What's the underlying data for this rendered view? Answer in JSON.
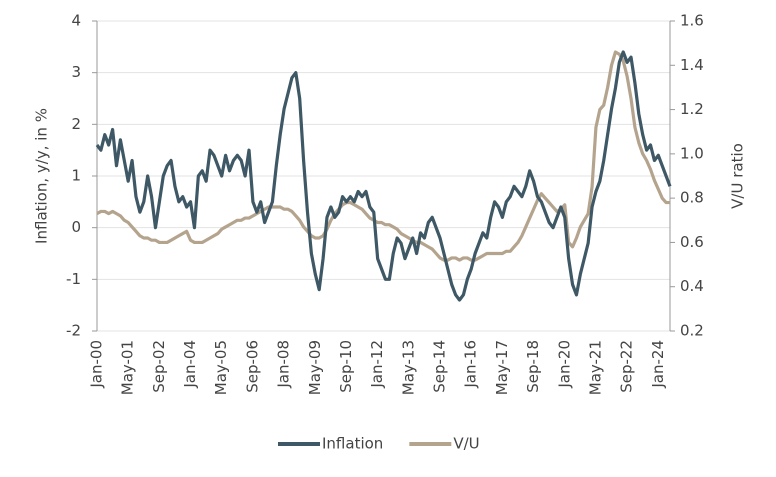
{
  "chart_data": {
    "type": "line",
    "y_label": "Inflation, y/y, in %",
    "y2_label": "V/U ratio",
    "categories": [
      "Jan-00",
      null,
      null,
      null,
      null,
      null,
      null,
      null,
      "May-01",
      null,
      null,
      null,
      null,
      null,
      null,
      null,
      "Sep-02",
      null,
      null,
      null,
      null,
      null,
      null,
      null,
      "Jan-04",
      null,
      null,
      null,
      null,
      null,
      null,
      null,
      "May-05",
      null,
      null,
      null,
      null,
      null,
      null,
      null,
      "Sep-06",
      null,
      null,
      null,
      null,
      null,
      null,
      null,
      "Jan-08",
      null,
      null,
      null,
      null,
      null,
      null,
      null,
      "May-09",
      null,
      null,
      null,
      null,
      null,
      null,
      null,
      "Sep-10",
      null,
      null,
      null,
      null,
      null,
      null,
      null,
      "Jan-12",
      null,
      null,
      null,
      null,
      null,
      null,
      null,
      "May-13",
      null,
      null,
      null,
      null,
      null,
      null,
      null,
      "Sep-14",
      null,
      null,
      null,
      null,
      null,
      null,
      null,
      "Jan-16",
      null,
      null,
      null,
      null,
      null,
      null,
      null,
      "May-17",
      null,
      null,
      null,
      null,
      null,
      null,
      null,
      "Sep-18",
      null,
      null,
      null,
      null,
      null,
      null,
      null,
      "Jan-20",
      null,
      null,
      null,
      null,
      null,
      null,
      null,
      "May-21",
      null,
      null,
      null,
      null,
      null,
      null,
      null,
      "Sep-22",
      null,
      null,
      null,
      null,
      null,
      null,
      null,
      "Jan-24",
      null,
      null,
      null
    ],
    "series": [
      {
        "name": "Inflation",
        "color": "#3e5866",
        "values": [
          1.6,
          1.5,
          1.8,
          1.6,
          1.9,
          1.2,
          1.7,
          1.3,
          0.9,
          1.3,
          0.6,
          0.3,
          0.5,
          1.0,
          0.6,
          0.0,
          0.5,
          1.0,
          1.2,
          1.3,
          0.8,
          0.5,
          0.6,
          0.4,
          0.5,
          0.0,
          1.0,
          1.1,
          0.9,
          1.5,
          1.4,
          1.2,
          1.0,
          1.4,
          1.1,
          1.3,
          1.4,
          1.3,
          1.0,
          1.5,
          0.5,
          0.3,
          0.5,
          0.1,
          0.3,
          0.5,
          1.2,
          1.8,
          2.3,
          2.6,
          2.9,
          3.0,
          2.5,
          1.3,
          0.3,
          -0.5,
          -0.9,
          -1.2,
          -0.6,
          0.2,
          0.4,
          0.2,
          0.3,
          0.6,
          0.5,
          0.6,
          0.5,
          0.7,
          0.6,
          0.7,
          0.4,
          0.3,
          -0.6,
          -0.8,
          -1.0,
          -1.0,
          -0.5,
          -0.2,
          -0.3,
          -0.6,
          -0.4,
          -0.2,
          -0.5,
          -0.1,
          -0.2,
          0.1,
          0.2,
          0.0,
          -0.2,
          -0.5,
          -0.8,
          -1.1,
          -1.3,
          -1.4,
          -1.3,
          -1.0,
          -0.8,
          -0.5,
          -0.3,
          -0.1,
          -0.2,
          0.2,
          0.5,
          0.4,
          0.2,
          0.5,
          0.6,
          0.8,
          0.7,
          0.6,
          0.8,
          1.1,
          0.9,
          0.6,
          0.5,
          0.3,
          0.1,
          0.0,
          0.2,
          0.4,
          0.2,
          -0.6,
          -1.1,
          -1.3,
          -0.9,
          -0.6,
          -0.3,
          0.4,
          0.7,
          0.9,
          1.3,
          1.8,
          2.3,
          2.7,
          3.2,
          3.4,
          3.2,
          3.3,
          2.8,
          2.2,
          1.8,
          1.5,
          1.6,
          1.3,
          1.4,
          1.2,
          1.0,
          0.8
        ]
      },
      {
        "name": "V/U",
        "color": "#b5a48d",
        "axis": "y2",
        "values": [
          0.73,
          0.74,
          0.74,
          0.73,
          0.74,
          0.73,
          0.72,
          0.7,
          0.69,
          0.67,
          0.65,
          0.63,
          0.62,
          0.62,
          0.61,
          0.61,
          0.6,
          0.6,
          0.6,
          0.61,
          0.62,
          0.63,
          0.64,
          0.65,
          0.61,
          0.6,
          0.6,
          0.6,
          0.61,
          0.62,
          0.63,
          0.64,
          0.66,
          0.67,
          0.68,
          0.69,
          0.7,
          0.7,
          0.71,
          0.71,
          0.72,
          0.73,
          0.74,
          0.75,
          0.76,
          0.76,
          0.76,
          0.76,
          0.75,
          0.75,
          0.74,
          0.72,
          0.7,
          0.67,
          0.65,
          0.63,
          0.62,
          0.62,
          0.63,
          0.66,
          0.7,
          0.73,
          0.75,
          0.77,
          0.78,
          0.78,
          0.77,
          0.76,
          0.75,
          0.73,
          0.71,
          0.7,
          0.69,
          0.69,
          0.68,
          0.68,
          0.67,
          0.66,
          0.64,
          0.63,
          0.62,
          0.61,
          0.6,
          0.6,
          0.59,
          0.58,
          0.57,
          0.55,
          0.53,
          0.52,
          0.52,
          0.53,
          0.53,
          0.52,
          0.53,
          0.53,
          0.52,
          0.52,
          0.53,
          0.54,
          0.55,
          0.55,
          0.55,
          0.55,
          0.55,
          0.56,
          0.56,
          0.58,
          0.6,
          0.63,
          0.67,
          0.71,
          0.75,
          0.79,
          0.82,
          0.8,
          0.78,
          0.76,
          0.74,
          0.75,
          0.77,
          0.6,
          0.58,
          0.62,
          0.67,
          0.7,
          0.73,
          0.85,
          1.12,
          1.2,
          1.22,
          1.3,
          1.4,
          1.46,
          1.45,
          1.42,
          1.35,
          1.25,
          1.12,
          1.05,
          1.0,
          0.97,
          0.93,
          0.88,
          0.84,
          0.8,
          0.78,
          0.78
        ]
      }
    ],
    "ylim": [
      -2,
      4
    ],
    "yticks": [
      -2,
      -1,
      0,
      1,
      2,
      3,
      4
    ],
    "y2lim": [
      0.2,
      1.6
    ],
    "y2ticks": [
      0.2,
      0.4,
      0.6,
      0.8,
      {
        "value": 1,
        "label": "1.0"
      },
      1.2,
      1.4,
      1.6
    ],
    "grid": true,
    "legend": "bottom"
  }
}
